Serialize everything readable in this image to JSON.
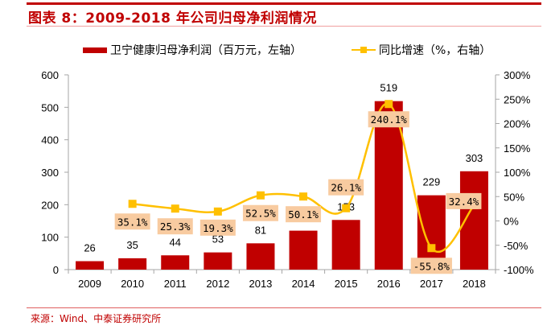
{
  "header": {
    "title": "图表 8：2009-2018 年公司归母净利润情况"
  },
  "footer": {
    "source": "来源：Wind、中泰证券研究所"
  },
  "chart_data": {
    "type": "bar+line",
    "title": "图表 8：2009-2018 年公司归母净利润情况",
    "categories": [
      "2009",
      "2010",
      "2011",
      "2012",
      "2013",
      "2014",
      "2015",
      "2016",
      "2017",
      "2018"
    ],
    "legend_position": "top",
    "series": [
      {
        "name": "卫宁健康归母净利润（百万元，左轴）",
        "type": "bar",
        "axis": "left",
        "color": "#c00000",
        "values": [
          26,
          35,
          44,
          53,
          81,
          120,
          153,
          519,
          229,
          303
        ],
        "data_labels": [
          "26",
          "35",
          "44",
          "53",
          "81",
          "",
          "153",
          "519",
          "229",
          "303"
        ]
      },
      {
        "name": "同比增速（%，右轴）",
        "type": "line",
        "axis": "right",
        "color": "#ffc000",
        "values": [
          null,
          35.1,
          25.3,
          19.3,
          52.5,
          50.1,
          26.1,
          240.1,
          -55.8,
          32.4
        ],
        "data_labels": [
          "",
          "35.1%",
          "25.3%",
          "19.3%",
          "52.5%",
          "50.1%",
          "26.1%",
          "240.1%",
          "-55.8%",
          "32.4%"
        ]
      }
    ],
    "y_left": {
      "min": 0,
      "max": 600,
      "ticks": [
        0,
        100,
        200,
        300,
        400,
        500,
        600
      ],
      "tick_labels": [
        "0",
        "100",
        "200",
        "300",
        "400",
        "500",
        "600"
      ]
    },
    "y_right": {
      "min": -100,
      "max": 300,
      "ticks": [
        -100,
        -50,
        0,
        50,
        100,
        150,
        200,
        250,
        300
      ],
      "tick_labels": [
        "-100%",
        "-50%",
        "0%",
        "50%",
        "100%",
        "150%",
        "200%",
        "250%",
        "300%"
      ]
    },
    "grid": false,
    "label_box_color": "#f8cba0"
  }
}
